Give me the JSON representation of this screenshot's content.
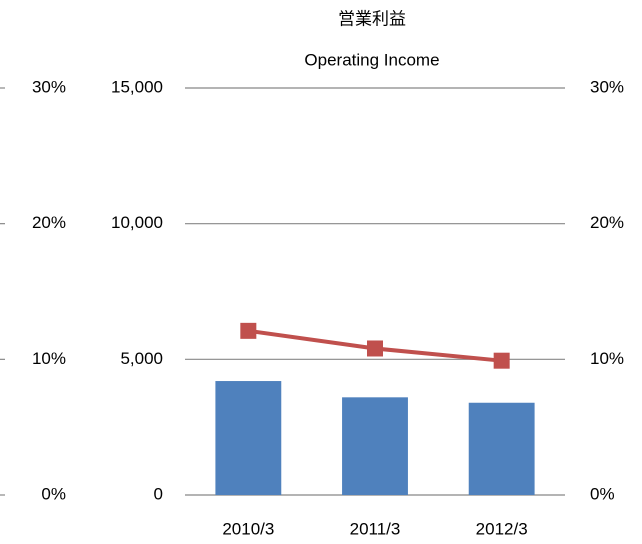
{
  "chart_data": {
    "type": "bar_line",
    "title": "営業利益",
    "subtitle": "Operating Income",
    "categories": [
      "2010/3",
      "2011/3",
      "2012/3"
    ],
    "series": [
      {
        "color": "#4f81bd",
        "values": [
          4200,
          3600,
          3400
        ],
        "type": "bar"
      },
      {
        "color": "#c0504d",
        "values": [
          12.1,
          10.8,
          9.9
        ],
        "type": "line",
        "axis": "y2"
      }
    ],
    "ylim": [
      0,
      15000
    ],
    "yticks": [
      0,
      {
        "value": 5000,
        "label": "5,000"
      },
      {
        "value": 10000,
        "label": "10,000"
      },
      {
        "value": 15000,
        "label": "15,000"
      }
    ],
    "y2lim": [
      0,
      30
    ],
    "y2ticks": [
      {
        "value": 0,
        "label": "0%"
      },
      {
        "value": 10,
        "label": "10%"
      },
      {
        "value": 20,
        "label": "20%"
      },
      {
        "value": 30,
        "label": "30%"
      }
    ],
    "grid": true
  }
}
